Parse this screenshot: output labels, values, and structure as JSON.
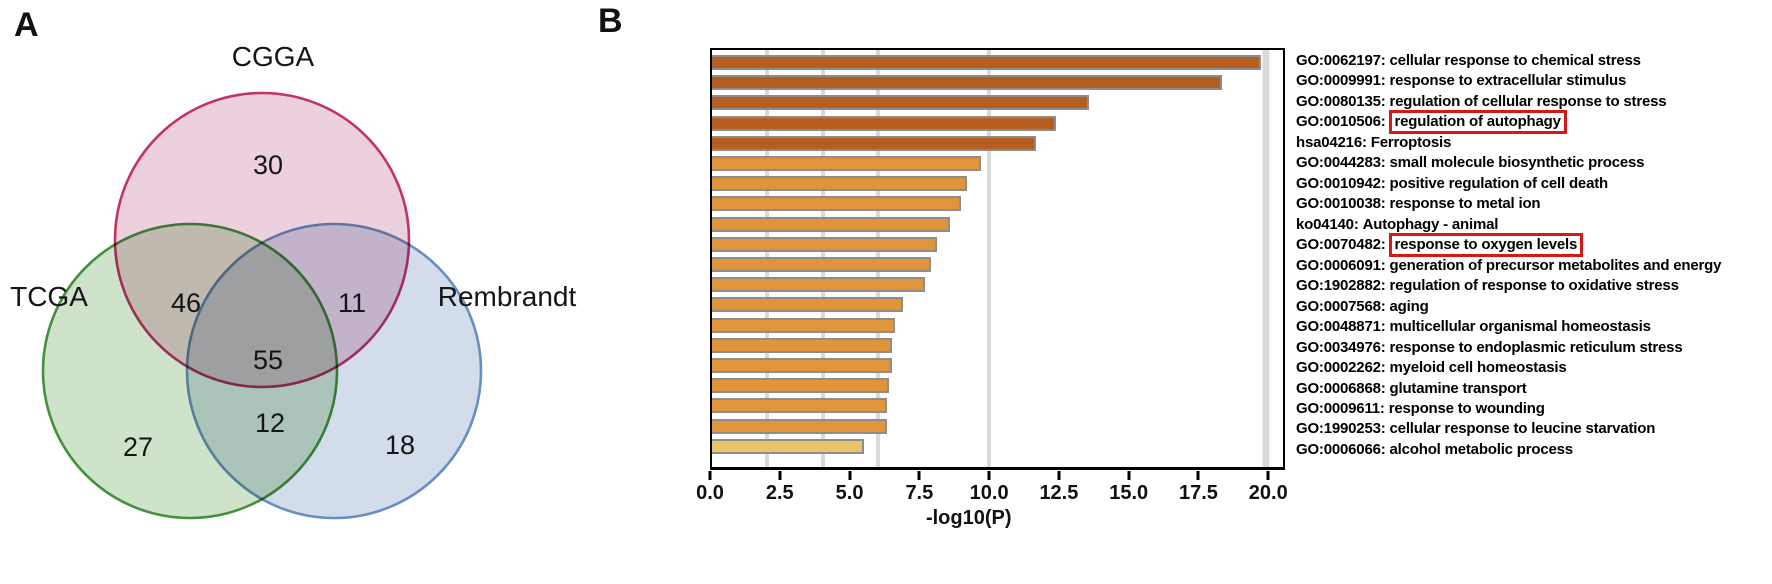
{
  "figure": {
    "panel_a_label": "A",
    "panel_b_label": "B"
  },
  "venn": {
    "sets": [
      {
        "name": "CGGA",
        "stroke": "#c03569",
        "fill": "#ecd0dd"
      },
      {
        "name": "TCGA",
        "stroke": "#44903e",
        "fill": "#cfe3ca"
      },
      {
        "name": "Rembrandt",
        "stroke": "#688fc1",
        "fill": "#d2dcea"
      }
    ],
    "counts": {
      "cgga_only": "30",
      "tcga_only": "27",
      "rembrandt_only": "18",
      "cgga_tcga": "46",
      "cgga_rembrandt": "11",
      "tcga_rembrandt": "12",
      "all_three": "55"
    }
  },
  "chart_data": {
    "type": "bar",
    "orientation": "horizontal",
    "title": "",
    "xlabel": "-log10(P)",
    "ylabel": "",
    "xlim": [
      0,
      20.6
    ],
    "xticks": [
      "0.0",
      "2.5",
      "5.0",
      "7.5",
      "10.0",
      "12.5",
      "15.0",
      "17.5",
      "20.0"
    ],
    "gridlines": [
      2,
      4,
      6,
      10,
      20
    ],
    "legend": "none",
    "bar_border_color": "#8d8d8d",
    "color_bins": {
      "gt10": "#b55e20",
      "6to10": "#e0953b",
      "4to6": "#e9c469"
    },
    "highlight_box_color": "#d11a1a",
    "items": [
      {
        "id": "GO:0062197",
        "desc": "cellular response to chemical stress",
        "value": 19.8,
        "boxed": false
      },
      {
        "id": "GO:0009991",
        "desc": "response to extracellular stimulus",
        "value": 18.4,
        "boxed": false
      },
      {
        "id": "GO:0080135",
        "desc": "regulation of cellular response to stress",
        "value": 13.6,
        "boxed": false
      },
      {
        "id": "GO:0010506",
        "desc": "regulation of autophagy",
        "value": 12.4,
        "boxed": true
      },
      {
        "id": "hsa04216",
        "desc": "Ferroptosis",
        "value": 11.7,
        "boxed": false
      },
      {
        "id": "GO:0044283",
        "desc": "small molecule biosynthetic process",
        "value": 9.7,
        "boxed": false
      },
      {
        "id": "GO:0010942",
        "desc": "positive regulation of cell death",
        "value": 9.2,
        "boxed": false
      },
      {
        "id": "GO:0010038",
        "desc": "response to metal ion",
        "value": 9.0,
        "boxed": false
      },
      {
        "id": "ko04140",
        "desc": "Autophagy - animal",
        "value": 8.6,
        "boxed": false
      },
      {
        "id": "GO:0070482",
        "desc": "response to oxygen levels",
        "value": 8.1,
        "boxed": true
      },
      {
        "id": "GO:0006091",
        "desc": "generation of precursor metabolites and energy",
        "value": 7.9,
        "boxed": false
      },
      {
        "id": "GO:1902882",
        "desc": "regulation of response to oxidative stress",
        "value": 7.7,
        "boxed": false
      },
      {
        "id": "GO:0007568",
        "desc": "aging",
        "value": 6.9,
        "boxed": false
      },
      {
        "id": "GO:0048871",
        "desc": "multicellular organismal homeostasis",
        "value": 6.6,
        "boxed": false
      },
      {
        "id": "GO:0034976",
        "desc": "response to endoplasmic reticulum stress",
        "value": 6.5,
        "boxed": false
      },
      {
        "id": "GO:0002262",
        "desc": "myeloid cell homeostasis",
        "value": 6.5,
        "boxed": false
      },
      {
        "id": "GO:0006868",
        "desc": "glutamine transport",
        "value": 6.4,
        "boxed": false
      },
      {
        "id": "GO:0009611",
        "desc": "response to wounding",
        "value": 6.3,
        "boxed": false
      },
      {
        "id": "GO:1990253",
        "desc": "cellular response to leucine starvation",
        "value": 6.3,
        "boxed": false
      },
      {
        "id": "GO:0006066",
        "desc": "alcohol metabolic process",
        "value": 5.5,
        "boxed": false
      }
    ]
  }
}
